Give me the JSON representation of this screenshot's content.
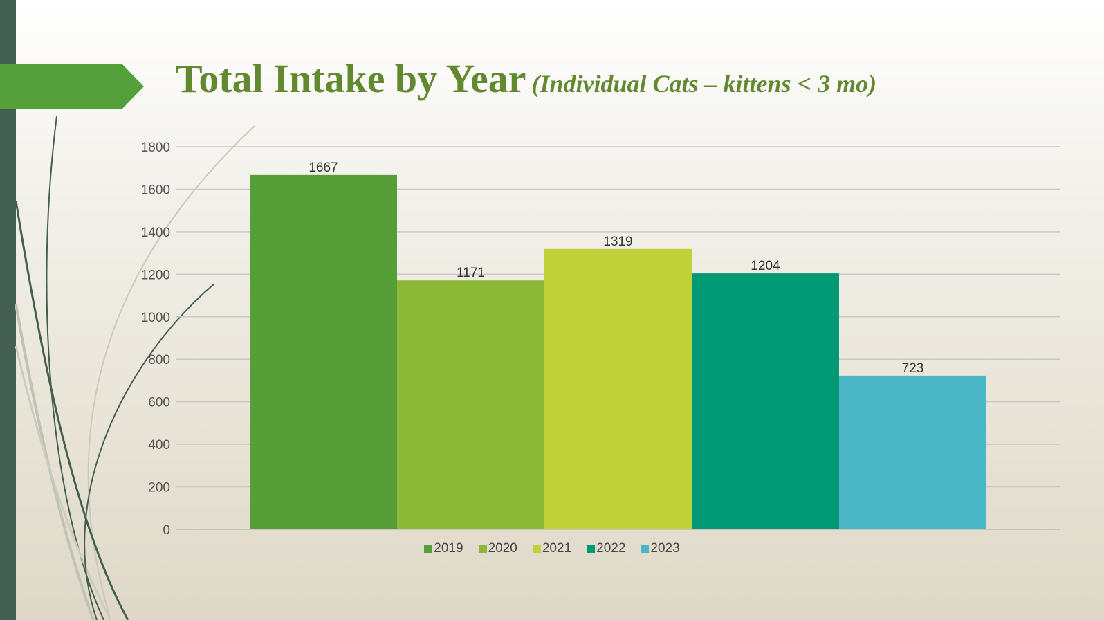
{
  "slide": {
    "title_main": "Total Intake by Year",
    "title_sub": "(Individual Cats – kittens < 3 mo)"
  },
  "colors": {
    "stripe": "#435f51",
    "arrow": "#55a03a",
    "title": "#62892f"
  },
  "chart_data": {
    "type": "bar",
    "categories": [
      "2019",
      "2020",
      "2021",
      "2022",
      "2023"
    ],
    "values": [
      1667,
      1171,
      1319,
      1204,
      723
    ],
    "colors": [
      "#559e38",
      "#8db836",
      "#c1d13a",
      "#009875",
      "#4bb6c6"
    ],
    "y_ticks": [
      0,
      200,
      400,
      600,
      800,
      1000,
      1200,
      1400,
      1600,
      1800
    ],
    "ylim": [
      0,
      1800
    ],
    "grid": true,
    "legend": "bottom",
    "data_labels": true
  }
}
